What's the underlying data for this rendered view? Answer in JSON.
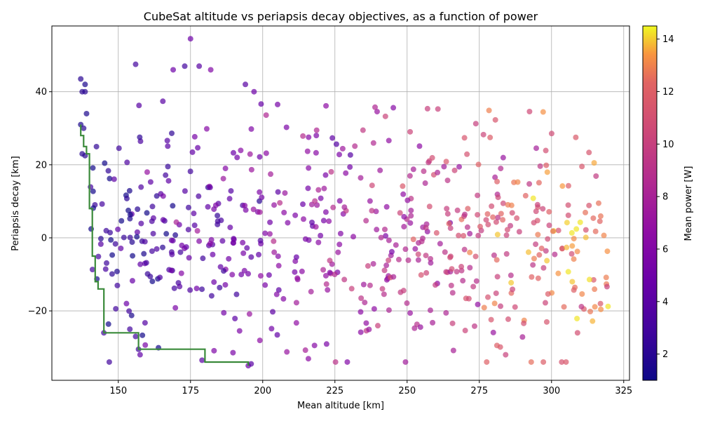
{
  "chart_data": {
    "type": "scatter",
    "title": "CubeSat altitude vs periapsis decay objectives, as a function of power",
    "xlabel": "Mean altitude [km]",
    "ylabel": "Periapsis decay [km]",
    "colorbar_label": "Mean power [W]",
    "xlim": [
      127,
      327
    ],
    "ylim": [
      -39,
      58
    ],
    "clim": [
      1.0,
      14.5
    ],
    "x_ticks": [
      150,
      175,
      200,
      225,
      250,
      275,
      300,
      325
    ],
    "y_ticks": [
      -20,
      0,
      20,
      40
    ],
    "colorbar_ticks": [
      2,
      4,
      6,
      8,
      10,
      12,
      14
    ],
    "grid": true,
    "colormap": "plasma",
    "pareto_front": {
      "color": "#3a8a3a",
      "x": [
        137,
        137,
        138,
        138,
        139,
        139,
        140,
        140,
        141,
        141,
        142,
        142,
        143,
        143,
        145,
        145,
        156,
        156,
        157,
        157,
        180,
        180,
        195,
        195
      ],
      "y": [
        31,
        28,
        28,
        25,
        25,
        23,
        23,
        8,
        8,
        -5,
        -5,
        -12,
        -12,
        -14,
        -14,
        -26,
        -26,
        -26,
        -26,
        -30.5,
        -30.5,
        -34,
        -34,
        -35
      ]
    },
    "marker_alpha": 0.7,
    "points": []
  }
}
